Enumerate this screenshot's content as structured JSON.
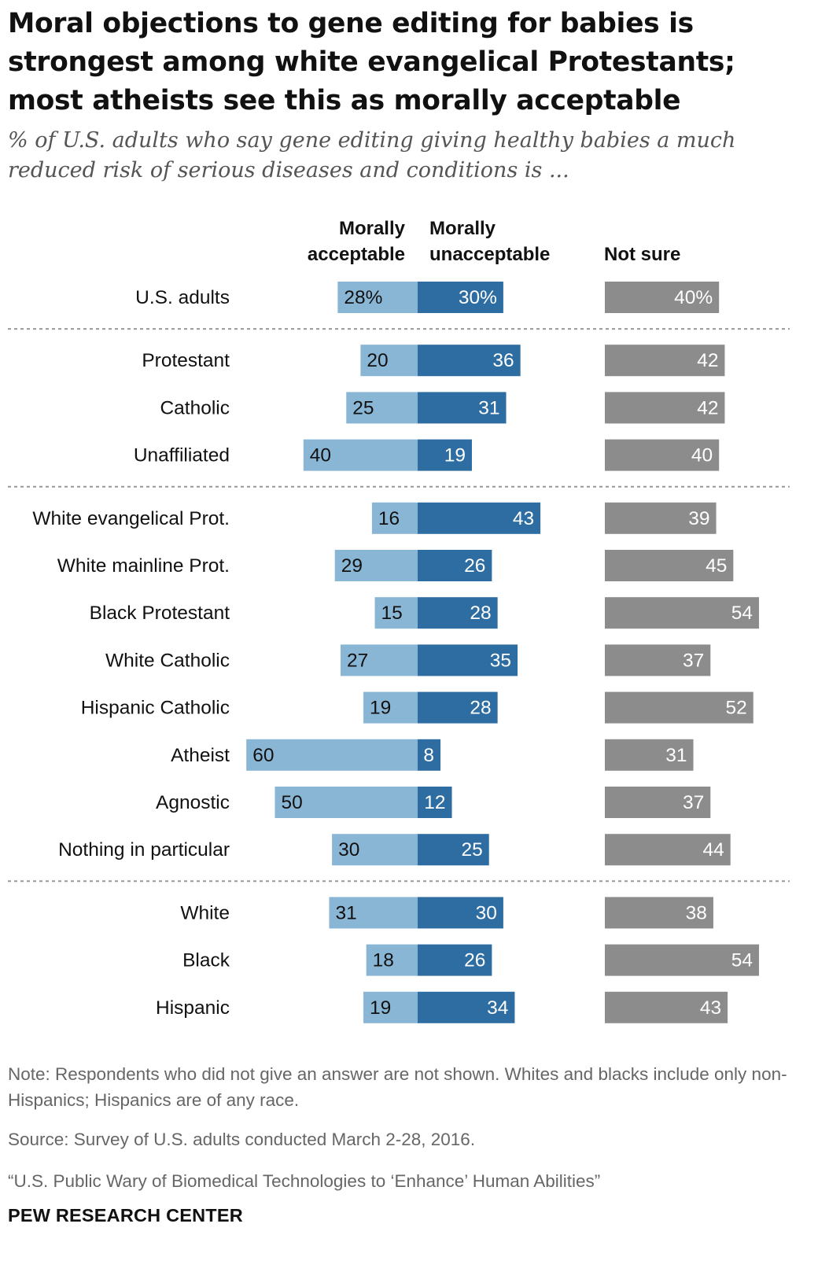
{
  "title": "Moral objections to gene editing for babies is strongest among white evangelical Protestants; most atheists see this as morally acceptable",
  "subtitle": "% of U.S. adults who say gene editing giving healthy babies a much reduced risk of serious diseases and conditions is ...",
  "chart_data": {
    "type": "bar",
    "orientation": "horizontal-diverging",
    "columns": [
      {
        "line1": "Morally",
        "line2": "acceptable"
      },
      {
        "line1": "Morally",
        "line2": "unacceptable"
      },
      {
        "line1": "",
        "line2": "Not sure"
      }
    ],
    "categories": [
      "U.S. adults",
      "Protestant",
      "Catholic",
      "Unaffiliated",
      "White evangelical Prot.",
      "White mainline Prot.",
      "Black Protestant",
      "White Catholic",
      "Hispanic Catholic",
      "Atheist",
      "Agnostic",
      "Nothing in particular",
      "White",
      "Black",
      "Hispanic"
    ],
    "groups": [
      [
        0
      ],
      [
        1,
        2,
        3
      ],
      [
        4,
        5,
        6,
        7,
        8,
        9,
        10,
        11
      ],
      [
        12,
        13,
        14
      ]
    ],
    "series": [
      {
        "name": "Morally acceptable",
        "values": [
          28,
          20,
          25,
          40,
          16,
          29,
          15,
          27,
          19,
          60,
          50,
          30,
          31,
          18,
          19
        ]
      },
      {
        "name": "Morally unacceptable",
        "values": [
          30,
          36,
          31,
          19,
          43,
          26,
          28,
          35,
          28,
          8,
          12,
          25,
          30,
          26,
          34
        ]
      },
      {
        "name": "Not sure",
        "values": [
          40,
          42,
          42,
          40,
          39,
          45,
          54,
          37,
          52,
          31,
          37,
          44,
          38,
          54,
          43
        ]
      }
    ],
    "first_row_label_suffix": "%",
    "colors": {
      "acceptable": "#8ab6d6",
      "unacceptable": "#2e6da1",
      "not_sure": "#8c8c8c",
      "separator": "#999999"
    }
  },
  "notes": {
    "note": "Note: Respondents who did not give an answer are not shown. Whites and blacks include only non-Hispanics; Hispanics are of any race.",
    "source": "Source: Survey of U.S. adults conducted March 2-28, 2016.",
    "report": "“U.S. Public Wary of Biomedical Technologies to ‘Enhance’ Human Abilities”",
    "brand": "PEW RESEARCH CENTER"
  }
}
